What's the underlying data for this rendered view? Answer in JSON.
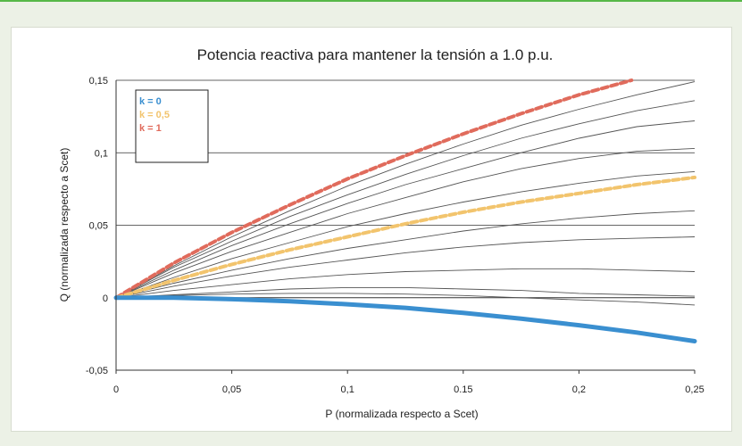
{
  "chart_data": {
    "type": "line",
    "title": "Potencia reactiva para mantener la tensión a 1.0 p.u.",
    "xlabel": "P (normalizada respecto a Scet)",
    "ylabel": "Q (normalizada respecto a Scet)",
    "xlim": [
      0,
      0.25
    ],
    "ylim": [
      -0.05,
      0.15
    ],
    "x_ticks": [
      "0",
      "0,05",
      "0,1",
      "0.15",
      "0,2",
      "0,25"
    ],
    "y_ticks": [
      "0,15",
      "0,1",
      "0,05",
      "0",
      "-0,05"
    ],
    "grid": "horizontal",
    "legend": {
      "position": "top-left",
      "entries": [
        "k = 0",
        "k = 0,5",
        "k = 1"
      ]
    },
    "colors": {
      "k0": "#3a8fd0",
      "k05": "#f2c46d",
      "k1": "#e06b5c",
      "family": "#555555",
      "grid": "#333333"
    },
    "x": [
      0,
      0.025,
      0.05,
      0.075,
      0.1,
      0.125,
      0.15,
      0.175,
      0.2,
      0.225,
      0.25
    ],
    "series": [
      {
        "name": "k = 1",
        "values": [
          0,
          0.024,
          0.045,
          0.064,
          0.082,
          0.098,
          0.113,
          0.127,
          0.14,
          0.151,
          0.162
        ]
      },
      {
        "name": "k = 0,5",
        "values": [
          0,
          0.012,
          0.023,
          0.033,
          0.042,
          0.051,
          0.059,
          0.066,
          0.072,
          0.078,
          0.083
        ]
      },
      {
        "name": "k = 0",
        "values": [
          0,
          0,
          -0.001,
          -0.0025,
          -0.0045,
          -0.007,
          -0.0105,
          -0.0145,
          -0.019,
          -0.024,
          -0.03
        ]
      }
    ],
    "family": [
      {
        "values": [
          0,
          0.022,
          0.042,
          0.06,
          0.077,
          0.092,
          0.106,
          0.119,
          0.13,
          0.14,
          0.149
        ]
      },
      {
        "values": [
          0,
          0.021,
          0.039,
          0.056,
          0.071,
          0.085,
          0.098,
          0.11,
          0.12,
          0.129,
          0.136
        ]
      },
      {
        "values": [
          0,
          0.019,
          0.036,
          0.051,
          0.065,
          0.078,
          0.089,
          0.1,
          0.11,
          0.118,
          0.122
        ]
      },
      {
        "values": [
          0,
          0.017,
          0.032,
          0.045,
          0.058,
          0.069,
          0.08,
          0.089,
          0.096,
          0.101,
          0.103
        ]
      },
      {
        "values": [
          0,
          0.014,
          0.027,
          0.038,
          0.049,
          0.058,
          0.066,
          0.073,
          0.079,
          0.084,
          0.087
        ]
      },
      {
        "values": [
          0,
          0.01,
          0.019,
          0.027,
          0.034,
          0.04,
          0.046,
          0.051,
          0.055,
          0.058,
          0.06
        ]
      },
      {
        "values": [
          0,
          0.008,
          0.015,
          0.021,
          0.026,
          0.031,
          0.035,
          0.038,
          0.04,
          0.041,
          0.042
        ]
      },
      {
        "values": [
          0,
          0.005,
          0.009,
          0.013,
          0.016,
          0.018,
          0.019,
          0.02,
          0.02,
          0.019,
          0.018
        ]
      },
      {
        "values": [
          0,
          0.002,
          0.004,
          0.006,
          0.007,
          0.007,
          0.006,
          0.005,
          0.003,
          0.002,
          0.001
        ]
      },
      {
        "values": [
          0,
          0.0015,
          0.0025,
          0.003,
          0.003,
          0.0025,
          0.0015,
          0,
          -0.0015,
          -0.003,
          -0.005
        ]
      }
    ]
  }
}
